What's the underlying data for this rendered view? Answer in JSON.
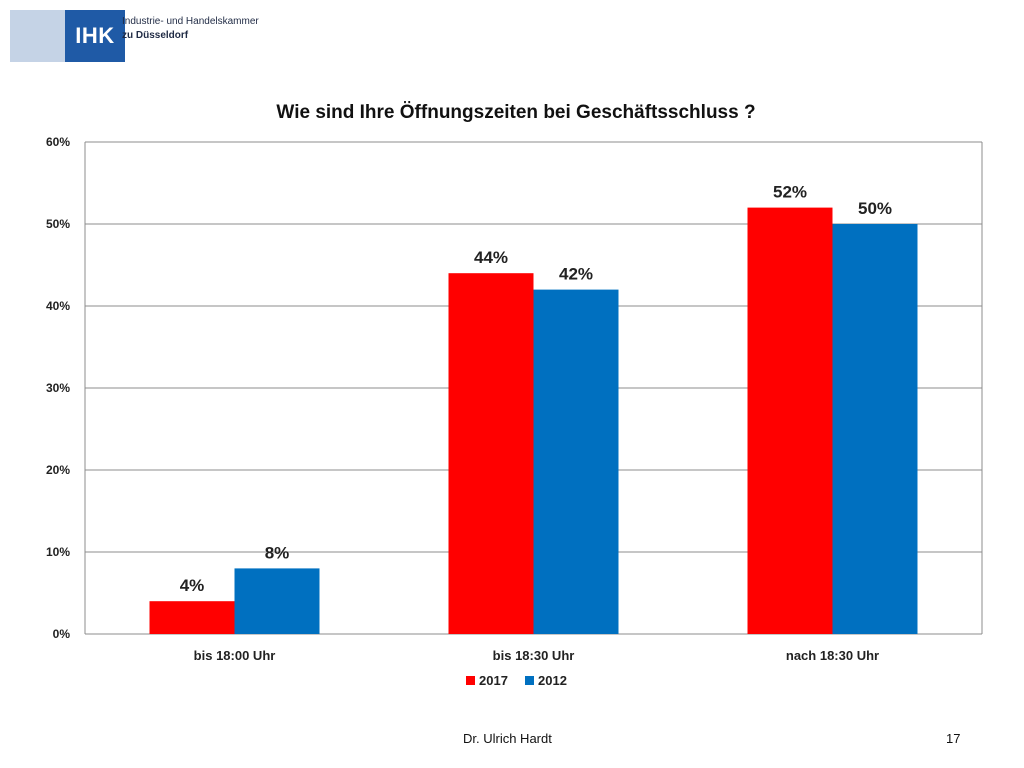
{
  "logo": {
    "mark": "IHK",
    "line1": "Industrie- und Handelskammer",
    "line2": "zu Düsseldorf"
  },
  "footer": {
    "author": "Dr. Ulrich Hardt",
    "page_number": "17"
  },
  "chart_data": {
    "type": "bar",
    "title": "Wie sind Ihre Öffnungszeiten bei Geschäftsschluss ?",
    "categories": [
      "bis 18:00 Uhr",
      "bis 18:30 Uhr",
      "nach 18:30 Uhr"
    ],
    "series": [
      {
        "name": "2017",
        "values": [
          4,
          44,
          52
        ],
        "labels": [
          "4%",
          "44%",
          "52%"
        ],
        "color": "#ff0000"
      },
      {
        "name": "2012",
        "values": [
          8,
          42,
          50
        ],
        "labels": [
          "8%",
          "42%",
          "50%"
        ],
        "color": "#0070c0"
      }
    ],
    "y_ticks": [
      {
        "value": 0,
        "label": "0%"
      },
      {
        "value": 10,
        "label": "10%"
      },
      {
        "value": 20,
        "label": "20%"
      },
      {
        "value": 30,
        "label": "30%"
      },
      {
        "value": 40,
        "label": "40%"
      },
      {
        "value": 50,
        "label": "50%"
      },
      {
        "value": 60,
        "label": "60%"
      }
    ],
    "ylim": [
      0,
      60
    ],
    "xlabel": "",
    "ylabel": "",
    "grid": true,
    "legend_position": "bottom"
  }
}
